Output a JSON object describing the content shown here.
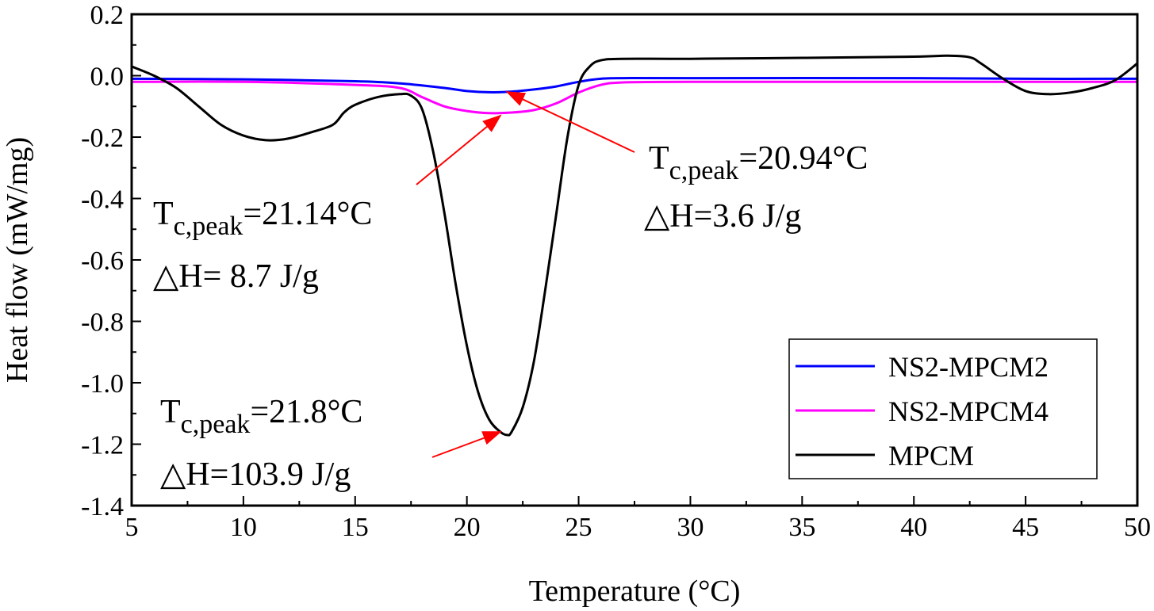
{
  "chart_data": {
    "type": "line",
    "xlabel": "Temperature (°C)",
    "ylabel": "Heat flow (mW/mg)",
    "xlim": [
      5,
      50
    ],
    "ylim": [
      -1.4,
      0.2
    ],
    "xticks": [
      5,
      10,
      15,
      20,
      25,
      30,
      35,
      40,
      45,
      50
    ],
    "yticks": [
      0.2,
      0.0,
      -0.2,
      -0.4,
      -0.6,
      -0.8,
      -1.0,
      -1.2,
      -1.4
    ],
    "xtick_labels": [
      "5",
      "10",
      "15",
      "20",
      "25",
      "30",
      "35",
      "40",
      "45",
      "50"
    ],
    "ytick_labels": [
      "0.2",
      "0.0",
      "-0.2",
      "-0.4",
      "-0.6",
      "-0.8",
      "-1.0",
      "-1.2",
      "-1.4"
    ],
    "grid": false,
    "legend_position": "bottom-right",
    "series": [
      {
        "name": "NS2-MPCM2",
        "color": "#0000ff",
        "x": [
          5,
          10,
          15,
          17,
          19,
          20,
          21,
          22,
          23,
          24,
          25,
          26,
          27,
          30,
          40,
          45,
          50
        ],
        "y": [
          -0.01,
          -0.012,
          -0.018,
          -0.025,
          -0.04,
          -0.05,
          -0.054,
          -0.052,
          -0.045,
          -0.035,
          -0.02,
          -0.01,
          -0.008,
          -0.008,
          -0.008,
          -0.01,
          -0.01
        ]
      },
      {
        "name": "NS2-MPCM4",
        "color": "#ff00ff",
        "x": [
          5,
          10,
          15,
          17,
          18,
          19,
          20,
          21,
          22,
          23,
          24,
          25,
          26,
          27,
          30,
          40,
          45,
          50
        ],
        "y": [
          -0.02,
          -0.02,
          -0.03,
          -0.04,
          -0.07,
          -0.1,
          -0.115,
          -0.122,
          -0.12,
          -0.112,
          -0.09,
          -0.055,
          -0.03,
          -0.022,
          -0.02,
          -0.02,
          -0.02,
          -0.02
        ]
      },
      {
        "name": "MPCM",
        "color": "#000000",
        "x": [
          5,
          6,
          7,
          8,
          9,
          10,
          11,
          12,
          13,
          14,
          14.5,
          15,
          16,
          17,
          17.5,
          18,
          18.5,
          19,
          19.5,
          20,
          20.5,
          21,
          21.5,
          21.8,
          22,
          22.5,
          23,
          23.5,
          24,
          24.5,
          25,
          25.5,
          26,
          27,
          30,
          35,
          40,
          41.5,
          42.5,
          43,
          44,
          45,
          46,
          47,
          48,
          49,
          50
        ],
        "y": [
          0.03,
          0.0,
          -0.04,
          -0.1,
          -0.16,
          -0.195,
          -0.21,
          -0.205,
          -0.185,
          -0.16,
          -0.12,
          -0.095,
          -0.07,
          -0.06,
          -0.065,
          -0.11,
          -0.25,
          -0.45,
          -0.68,
          -0.88,
          -1.03,
          -1.12,
          -1.16,
          -1.17,
          -1.16,
          -1.08,
          -0.93,
          -0.7,
          -0.45,
          -0.2,
          -0.03,
          0.03,
          0.05,
          0.055,
          0.055,
          0.058,
          0.062,
          0.065,
          0.06,
          0.04,
          -0.01,
          -0.05,
          -0.06,
          -0.055,
          -0.04,
          -0.015,
          0.04
        ]
      }
    ],
    "annotations": [
      {
        "target": "NS2-MPCM2",
        "point": [
          21.8,
          -0.053
        ],
        "label_prefix": "T",
        "label_sub": "c,peak",
        "label_value": "=20.94°C",
        "line2": "△H=3.6 J/g"
      },
      {
        "target": "NS2-MPCM4",
        "point": [
          21.5,
          -0.13
        ],
        "label_prefix": "T",
        "label_sub": "c,peak",
        "label_value": "=21.14°C",
        "line2": "△H= 8.7 J/g"
      },
      {
        "target": "MPCM",
        "point": [
          21.5,
          -1.16
        ],
        "label_prefix": "T",
        "label_sub": "c,peak",
        "label_value": "=21.8°C",
        "line2": "△H=103.9 J/g"
      }
    ],
    "arrow_color": "#ff0000"
  }
}
